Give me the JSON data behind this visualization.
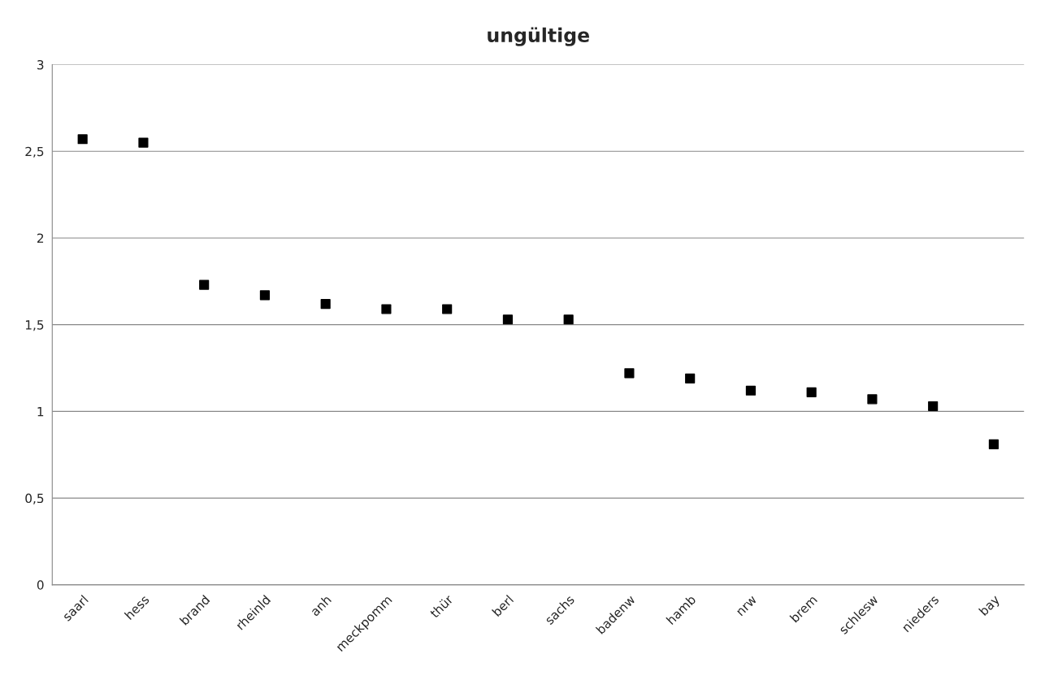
{
  "chart_data": {
    "type": "scatter",
    "title": "ungültige",
    "categories": [
      "saarl",
      "hess",
      "brand",
      "rheinld",
      "anh",
      "meckpomm",
      "thür",
      "berl",
      "sachs",
      "badenw",
      "hamb",
      "nrw",
      "brem",
      "schlesw",
      "nieders",
      "bay"
    ],
    "series": [
      {
        "color": "#000000",
        "values": [
          2.57,
          2.55,
          1.73,
          1.67,
          1.62,
          1.59,
          1.59,
          1.53,
          1.53,
          1.22,
          1.19,
          1.12,
          1.11,
          1.07,
          1.03,
          0.81
        ]
      }
    ],
    "ylim": [
      0,
      3
    ],
    "yticks": [
      0,
      {
        "value": 0.5,
        "label": "0,5"
      },
      1,
      {
        "value": 1.5,
        "label": "1,5"
      },
      2,
      {
        "value": 2.5,
        "label": "2,5"
      },
      3
    ],
    "grid": "y",
    "marker": "square",
    "legend": false
  }
}
